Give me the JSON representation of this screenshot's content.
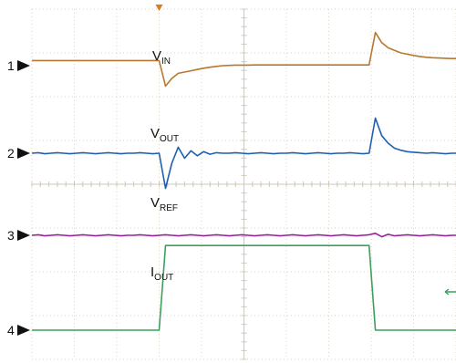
{
  "chart_data": {
    "type": "line",
    "title": "",
    "xlabel": "",
    "ylabel": "",
    "grid": true,
    "grid_divisions": {
      "x": 10,
      "y": 8
    },
    "trigger_marker_color": "#e07a1f",
    "offscreen_arrow_color": "#3aa05a",
    "x": [
      0,
      0.15,
      0.3,
      0.45,
      0.6,
      0.75,
      0.9,
      1.05,
      1.2,
      1.35,
      1.5,
      1.65,
      1.8,
      1.95,
      2.1,
      2.25,
      2.4,
      2.55,
      2.7,
      2.85,
      3.0,
      3.15,
      3.3,
      3.45,
      3.6,
      3.75,
      3.9,
      4.05,
      4.2,
      4.35,
      4.5,
      4.65,
      4.8,
      4.95,
      5.1,
      5.25,
      5.4,
      5.55,
      5.7,
      5.85,
      6.0,
      6.15,
      6.3,
      6.45,
      6.6,
      6.75,
      6.9,
      7.05,
      7.2,
      7.35,
      7.5,
      7.65,
      7.8,
      7.95,
      8.1,
      8.25,
      8.4,
      8.55,
      8.7,
      8.85,
      9.0,
      9.15,
      9.3,
      9.45,
      9.6,
      9.75,
      9.9,
      10.0
    ],
    "series": [
      {
        "channel_marker": "1",
        "name_main": "V",
        "name_sub": "IN",
        "color": "#b8772f",
        "values": [
          0.2,
          0.2,
          0.2,
          0.2,
          0.2,
          0.2,
          0.2,
          0.2,
          0.2,
          0.2,
          0.2,
          0.2,
          0.2,
          0.2,
          0.2,
          0.2,
          0.2,
          0.2,
          0.2,
          0.2,
          0.2,
          -0.8,
          -0.5,
          -0.3,
          -0.25,
          -0.2,
          -0.15,
          -0.1,
          -0.06,
          -0.03,
          0.0,
          0.01,
          0.02,
          0.02,
          0.02,
          0.03,
          0.03,
          0.03,
          0.03,
          0.03,
          0.03,
          0.03,
          0.03,
          0.03,
          0.03,
          0.03,
          0.03,
          0.03,
          0.03,
          0.03,
          0.03,
          0.03,
          0.03,
          0.03,
          1.3,
          0.9,
          0.7,
          0.6,
          0.5,
          0.45,
          0.4,
          0.36,
          0.33,
          0.31,
          0.3,
          0.29,
          0.28,
          0.28
        ]
      },
      {
        "channel_marker": "2",
        "name_main": "V",
        "name_sub": "OUT",
        "color": "#1f5fb0",
        "values": [
          0.0,
          0.01,
          -0.01,
          0.0,
          0.01,
          0.0,
          -0.01,
          0.0,
          0.01,
          0.0,
          -0.01,
          0.0,
          0.01,
          0.0,
          -0.01,
          0.0,
          0.0,
          0.01,
          0.0,
          -0.01,
          0.0,
          -0.7,
          -0.2,
          0.12,
          -0.1,
          0.05,
          -0.05,
          0.03,
          -0.02,
          0.01,
          0.0,
          0.0,
          0.01,
          0.0,
          -0.01,
          0.0,
          0.01,
          0.0,
          -0.01,
          0.0,
          0.0,
          0.01,
          0.0,
          -0.01,
          0.0,
          0.01,
          0.0,
          -0.01,
          0.0,
          0.0,
          0.01,
          0.0,
          -0.01,
          0.0,
          0.7,
          0.35,
          0.2,
          0.1,
          0.06,
          0.03,
          0.02,
          0.01,
          0.0,
          0.01,
          0.0,
          -0.01,
          0.0,
          0.0
        ]
      },
      {
        "channel_marker": "3",
        "name_main": "V",
        "name_sub": "REF",
        "color": "#9b1f9b",
        "values": [
          0.0,
          0.01,
          -0.01,
          0.0,
          0.01,
          0.0,
          -0.01,
          0.0,
          0.01,
          0.0,
          -0.01,
          0.0,
          0.01,
          0.0,
          -0.01,
          0.0,
          0.0,
          0.01,
          0.0,
          -0.01,
          0.0,
          0.01,
          0.0,
          -0.01,
          0.0,
          0.01,
          0.0,
          -0.01,
          0.0,
          0.01,
          0.0,
          -0.01,
          0.0,
          0.01,
          0.0,
          -0.01,
          0.0,
          0.01,
          0.0,
          -0.01,
          0.0,
          0.01,
          0.0,
          -0.01,
          0.0,
          0.01,
          0.0,
          -0.01,
          0.0,
          0.01,
          0.0,
          -0.01,
          0.0,
          0.01,
          0.04,
          -0.03,
          0.02,
          -0.01,
          0.0,
          0.01,
          0.0,
          -0.01,
          0.0,
          0.01,
          0.0,
          -0.01,
          0.0,
          0.0
        ]
      },
      {
        "channel_marker": "4",
        "name_main": "I",
        "name_sub": "OUT",
        "color": "#3aa05a",
        "values": [
          0.0,
          0.0,
          0.0,
          0.0,
          0.0,
          0.0,
          0.0,
          0.0,
          0.0,
          0.0,
          0.0,
          0.0,
          0.0,
          0.0,
          0.0,
          0.0,
          0.0,
          0.0,
          0.0,
          0.0,
          0.0,
          1.6,
          1.6,
          1.6,
          1.6,
          1.6,
          1.6,
          1.6,
          1.6,
          1.6,
          1.6,
          1.6,
          1.6,
          1.6,
          1.6,
          1.6,
          1.6,
          1.6,
          1.6,
          1.6,
          1.6,
          1.6,
          1.6,
          1.6,
          1.6,
          1.6,
          1.6,
          1.6,
          1.6,
          1.6,
          1.6,
          1.6,
          1.6,
          1.6,
          0.0,
          0.0,
          0.0,
          0.0,
          0.0,
          0.0,
          0.0,
          0.0,
          0.0,
          0.0,
          0.0,
          0.0,
          0.0,
          0.0
        ]
      }
    ]
  }
}
